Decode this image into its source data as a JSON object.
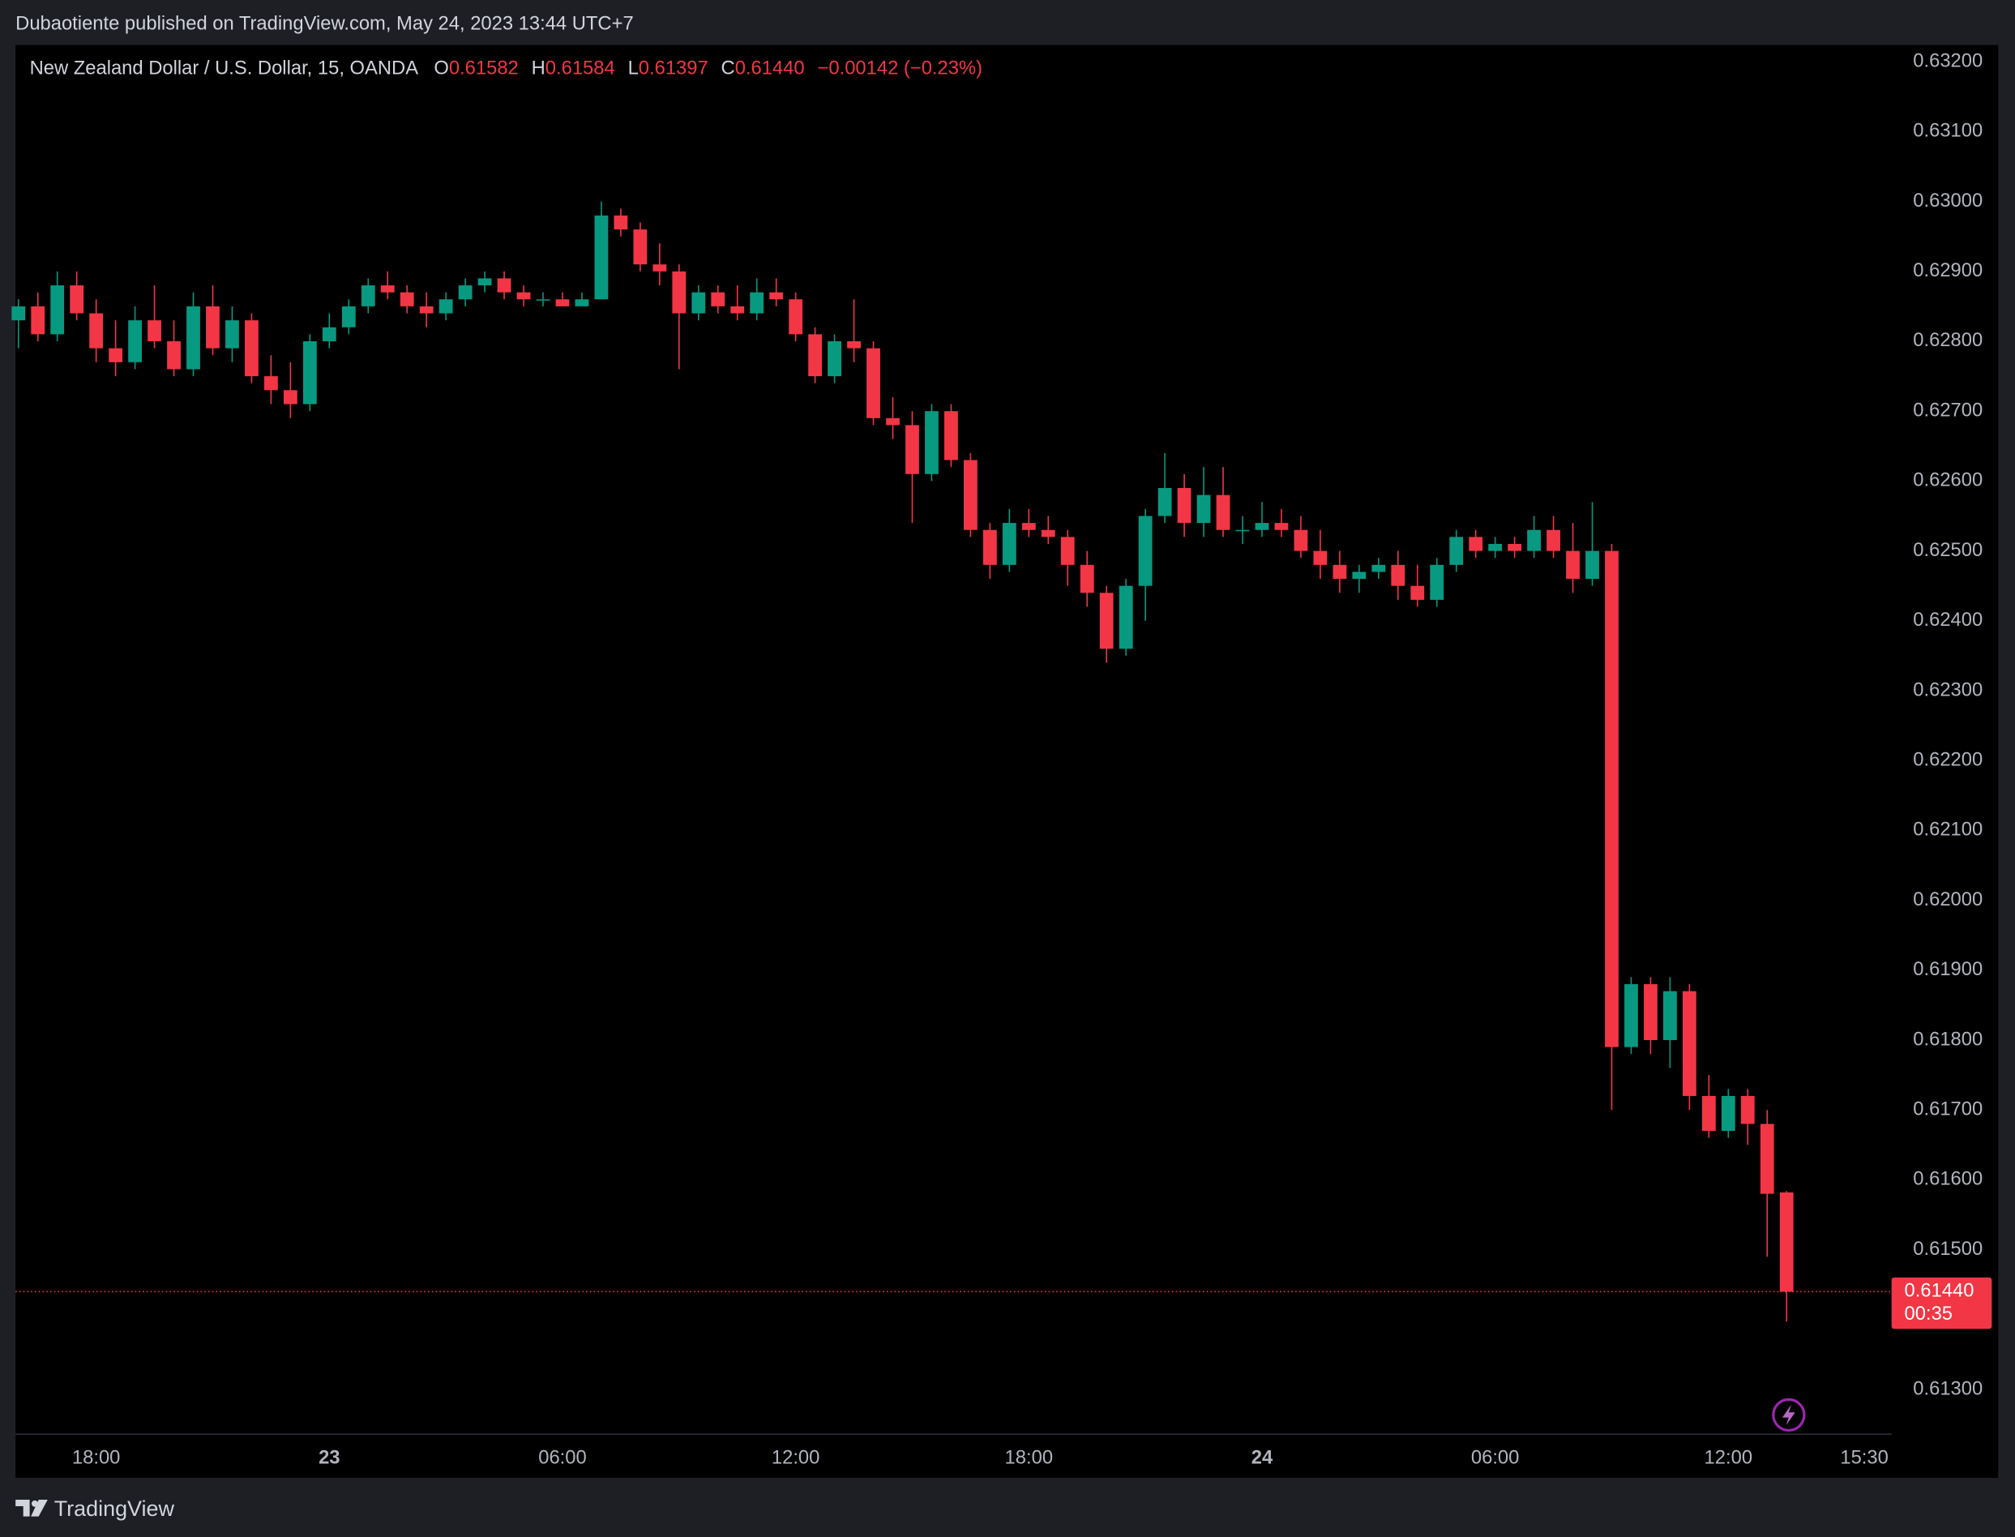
{
  "published": "Dubaotiente published on TradingView.com, May 24, 2023 13:44 UTC+7",
  "brand": "TradingView",
  "chart_data": {
    "type": "candlestick",
    "title": "New Zealand Dollar / U.S. Dollar, 15, OANDA",
    "legend": [
      {
        "label": "O",
        "value": 0.61582
      },
      {
        "label": "H",
        "value": 0.61584
      },
      {
        "label": "L",
        "value": 0.61397
      },
      {
        "label": "C",
        "value": {
          "value": 0.6144,
          "label": "0.61440"
        }
      }
    ],
    "change": "−0.00142 (−0.23%)",
    "up_color": "#089981",
    "down_color": "#f23645",
    "open": [
      0.6283,
      0.6285,
      0.6281,
      0.6288,
      0.6284,
      0.6279,
      0.6277,
      0.6283,
      0.628,
      0.6276,
      0.6285,
      0.6279,
      0.6283,
      0.6275,
      0.6273,
      0.6271,
      0.628,
      0.6282,
      0.6285,
      0.6288,
      0.6287,
      0.6285,
      0.6284,
      0.6286,
      0.6288,
      0.6289,
      0.6287,
      0.6286,
      0.6286,
      0.6285,
      0.6286,
      0.6298,
      0.6296,
      0.6291,
      0.629,
      0.6284,
      0.6287,
      0.6285,
      0.6284,
      0.6287,
      0.6286,
      0.6281,
      0.6275,
      0.628,
      0.6279,
      0.6269,
      0.6268,
      0.6261,
      0.627,
      0.6263,
      0.6253,
      0.6248,
      0.6254,
      0.6253,
      0.6252,
      0.6248,
      0.6244,
      0.6236,
      0.6245,
      0.6255,
      0.6259,
      0.6254,
      0.6258,
      0.6253,
      0.6253,
      0.6254,
      0.6253,
      0.625,
      0.6248,
      0.6246,
      0.6247,
      0.6248,
      0.6245,
      0.6243,
      0.6248,
      0.6252,
      0.625,
      0.6251,
      0.625,
      0.6253,
      0.625,
      0.6246,
      0.625,
      0.6179,
      0.6188,
      0.618,
      0.6187,
      0.6172,
      0.6167,
      0.6172,
      0.6168,
      0.61582
    ],
    "high": [
      0.6286,
      0.6287,
      0.629,
      0.629,
      0.6286,
      0.6283,
      0.6285,
      0.6288,
      0.6283,
      0.6287,
      0.6288,
      0.6285,
      0.6284,
      0.6278,
      0.6277,
      0.6281,
      0.6284,
      0.6286,
      0.6289,
      0.629,
      0.6288,
      0.6287,
      0.6287,
      0.6289,
      0.629,
      0.629,
      0.6288,
      0.6287,
      0.6287,
      0.6287,
      0.63,
      0.6299,
      0.6297,
      0.6294,
      0.6291,
      0.6288,
      0.6288,
      0.6288,
      0.6289,
      0.6289,
      0.6287,
      0.6282,
      0.6281,
      0.6286,
      0.628,
      0.6272,
      0.627,
      0.6271,
      0.6271,
      0.6264,
      0.6254,
      0.6256,
      0.6256,
      0.6255,
      0.6253,
      0.625,
      0.6245,
      0.6246,
      0.6256,
      0.6264,
      0.6261,
      0.6262,
      0.6262,
      0.6255,
      0.6257,
      0.6256,
      0.6255,
      0.6253,
      0.625,
      0.6248,
      0.6249,
      0.625,
      0.6248,
      0.6249,
      0.6253,
      0.6253,
      0.6252,
      0.6252,
      0.6255,
      0.6255,
      0.6254,
      0.6257,
      0.6251,
      0.6189,
      0.6189,
      0.6189,
      0.6188,
      0.6175,
      0.6173,
      0.6173,
      0.617,
      0.61584
    ],
    "low": [
      0.6279,
      0.628,
      0.628,
      0.6283,
      0.6277,
      0.6275,
      0.6276,
      0.6279,
      0.6275,
      0.6275,
      0.6278,
      0.6277,
      0.6274,
      0.6271,
      0.6269,
      0.627,
      0.6279,
      0.6281,
      0.6284,
      0.6286,
      0.6284,
      0.6282,
      0.6283,
      0.6285,
      0.6287,
      0.6286,
      0.6285,
      0.6285,
      0.6285,
      0.6285,
      0.6286,
      0.6295,
      0.629,
      0.6288,
      0.6276,
      0.6283,
      0.6284,
      0.6283,
      0.6283,
      0.6285,
      0.628,
      0.6274,
      0.6274,
      0.6277,
      0.6268,
      0.6266,
      0.6254,
      0.626,
      0.6262,
      0.6252,
      0.6246,
      0.6247,
      0.6252,
      0.6251,
      0.6245,
      0.6242,
      0.6234,
      0.6235,
      0.624,
      0.6254,
      0.6252,
      0.6252,
      0.6252,
      0.6251,
      0.6252,
      0.6252,
      0.6249,
      0.6246,
      0.6244,
      0.6244,
      0.6246,
      0.6243,
      0.6242,
      0.6242,
      0.6247,
      0.6249,
      0.6249,
      0.6249,
      0.6249,
      0.6249,
      0.6244,
      0.6245,
      0.617,
      0.6178,
      0.6178,
      0.6176,
      0.617,
      0.6166,
      0.6166,
      0.6165,
      0.6149,
      0.61397
    ],
    "close": [
      0.6285,
      0.6281,
      0.6288,
      0.6284,
      0.6279,
      0.6277,
      0.6283,
      0.628,
      0.6276,
      0.6285,
      0.6279,
      0.6283,
      0.6275,
      0.6273,
      0.6271,
      0.628,
      0.6282,
      0.6285,
      0.6288,
      0.6287,
      0.6285,
      0.6284,
      0.6286,
      0.6288,
      0.6289,
      0.6287,
      0.6286,
      0.6286,
      0.6285,
      0.6286,
      0.6298,
      0.6296,
      0.6291,
      0.629,
      0.6284,
      0.6287,
      0.6285,
      0.6284,
      0.6287,
      0.6286,
      0.6281,
      0.6275,
      0.628,
      0.6279,
      0.6269,
      0.6268,
      0.6261,
      0.627,
      0.6263,
      0.6253,
      0.6248,
      0.6254,
      0.6253,
      0.6252,
      0.6248,
      0.6244,
      0.6236,
      0.6245,
      0.6255,
      0.6259,
      0.6254,
      0.6258,
      0.6253,
      0.6253,
      0.6254,
      0.6253,
      0.625,
      0.6248,
      0.6246,
      0.6247,
      0.6248,
      0.6245,
      0.6243,
      0.6248,
      0.6252,
      0.625,
      0.6251,
      0.625,
      0.6253,
      0.625,
      0.6246,
      0.625,
      0.6179,
      0.6188,
      0.618,
      0.6187,
      0.6172,
      0.6167,
      0.6172,
      0.6168,
      0.6158,
      0.6144
    ],
    "xlim": [
      -0.15,
      96.4
    ],
    "xticks": [
      {
        "value": 4,
        "label": "18:00"
      },
      {
        "value": 16,
        "label": "23"
      },
      {
        "value": 28,
        "label": "06:00"
      },
      {
        "value": 40,
        "label": "12:00"
      },
      {
        "value": 52,
        "label": "18:00"
      },
      {
        "value": 64,
        "label": "24"
      },
      {
        "value": 76,
        "label": "06:00"
      },
      {
        "value": 88,
        "label": "12:00"
      },
      {
        "value": 95,
        "label": "15:30"
      }
    ],
    "ylim": [
      0.61236,
      0.63224
    ],
    "yticks": [
      {
        "value": 0.632,
        "label": "0.63200"
      },
      {
        "value": 0.631,
        "label": "0.63100"
      },
      {
        "value": 0.63,
        "label": "0.63000"
      },
      {
        "value": 0.629,
        "label": "0.62900"
      },
      {
        "value": 0.628,
        "label": "0.62800"
      },
      {
        "value": 0.627,
        "label": "0.62700"
      },
      {
        "value": 0.626,
        "label": "0.62600"
      },
      {
        "value": 0.625,
        "label": "0.62500"
      },
      {
        "value": 0.624,
        "label": "0.62400"
      },
      {
        "value": 0.623,
        "label": "0.62300"
      },
      {
        "value": 0.622,
        "label": "0.62200"
      },
      {
        "value": 0.621,
        "label": "0.62100"
      },
      {
        "value": 0.62,
        "label": "0.62000"
      },
      {
        "value": 0.619,
        "label": "0.61900"
      },
      {
        "value": 0.618,
        "label": "0.61800"
      },
      {
        "value": 0.617,
        "label": "0.61700"
      },
      {
        "value": 0.616,
        "label": "0.61600"
      },
      {
        "value": 0.615,
        "label": "0.61500"
      },
      {
        "value": 0.613,
        "label": "0.61300"
      }
    ],
    "last_price": {
      "value": 0.6144,
      "label": "0.61440"
    },
    "countdown": "00:35"
  }
}
